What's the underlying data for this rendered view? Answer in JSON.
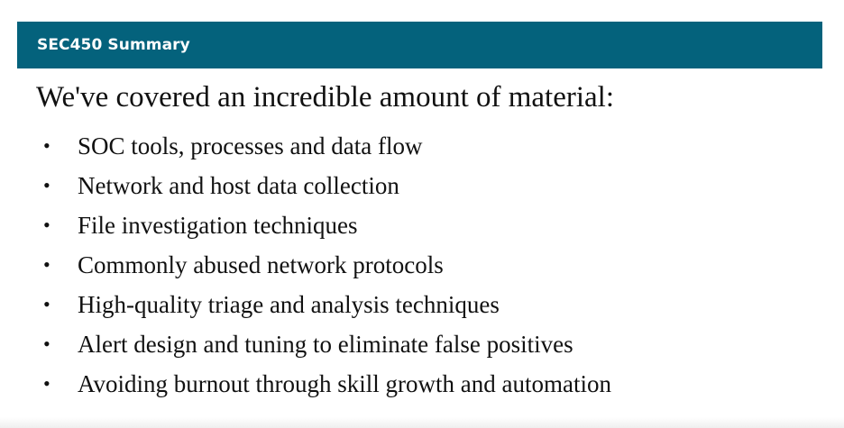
{
  "header": {
    "title": "SEC450 Summary"
  },
  "content": {
    "lead": "We've covered an incredible amount of material:",
    "bullets": [
      "SOC tools, processes and data flow",
      "Network and host data collection",
      "File investigation techniques",
      "Commonly abused network protocols",
      "High-quality triage and analysis techniques",
      "Alert design and tuning to eliminate false positives",
      "Avoiding burnout through skill growth and automation"
    ],
    "bullet_glyph": "•"
  },
  "colors": {
    "header_bg": "#04627c",
    "header_text": "#ffffff",
    "body_text": "#111111"
  }
}
